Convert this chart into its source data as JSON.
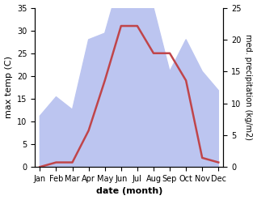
{
  "months": [
    "Jan",
    "Feb",
    "Mar",
    "Apr",
    "May",
    "Jun",
    "Jul",
    "Aug",
    "Sep",
    "Oct",
    "Nov",
    "Dec"
  ],
  "temperature": [
    0,
    1,
    1,
    8,
    19,
    31,
    31,
    25,
    25,
    19,
    2,
    1
  ],
  "precipitation": [
    8,
    11,
    9,
    20,
    21,
    30,
    34,
    25,
    15,
    20,
    15,
    12
  ],
  "temp_color": "#c0454a",
  "precip_fill_color": "#bcc5f0",
  "temp_ylim": [
    0,
    35
  ],
  "precip_ylim": [
    0,
    25
  ],
  "temp_scale_max": 35,
  "precip_scale_max": 25,
  "xlabel": "date (month)",
  "ylabel_left": "max temp (C)",
  "ylabel_right": "med. precipitation (kg/m2)",
  "tick_fontsize": 7,
  "label_fontsize": 8,
  "line_width": 1.8,
  "background_color": "#ffffff"
}
